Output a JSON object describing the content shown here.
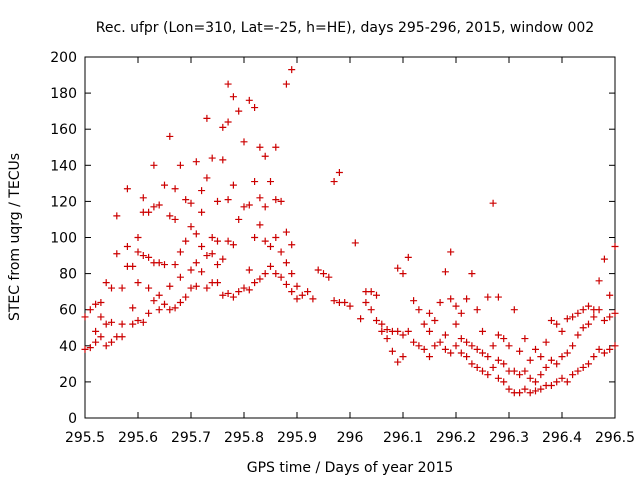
{
  "chart_data": {
    "type": "scatter",
    "title": "Rec. ufpr (Lon=310, Lat=-25, h=HE), days 295-296, 2015, window 002",
    "xlabel": "GPS time / Days of year 2015",
    "ylabel": "STEC from uqrg / TECUs",
    "xlim": [
      295.5,
      296.5
    ],
    "ylim": [
      0,
      200
    ],
    "xticks": [
      295.5,
      295.6,
      295.7,
      295.8,
      295.9,
      296.0,
      296.1,
      296.2,
      296.3,
      296.4,
      296.5
    ],
    "xtick_labels": [
      "295.5",
      "295.6",
      "295.7",
      "295.8",
      "295.9",
      "296",
      "296.1",
      "296.2",
      "296.3",
      "296.4",
      "296.5"
    ],
    "yticks": [
      0,
      20,
      40,
      60,
      80,
      100,
      120,
      140,
      160,
      180,
      200
    ],
    "ytick_labels": [
      "0",
      "20",
      "40",
      "60",
      "80",
      "100",
      "120",
      "140",
      "160",
      "180",
      "200"
    ],
    "grid": false,
    "legend": "none",
    "marker": "+",
    "color": "#cc0000",
    "points": [
      [
        295.5,
        38
      ],
      [
        295.51,
        39
      ],
      [
        295.5,
        56
      ],
      [
        295.51,
        60
      ],
      [
        295.52,
        42
      ],
      [
        295.52,
        48
      ],
      [
        295.52,
        63
      ],
      [
        295.53,
        45
      ],
      [
        295.53,
        56
      ],
      [
        295.53,
        64
      ],
      [
        295.54,
        40
      ],
      [
        295.54,
        52
      ],
      [
        295.54,
        75
      ],
      [
        295.55,
        42
      ],
      [
        295.55,
        53
      ],
      [
        295.55,
        72
      ],
      [
        295.56,
        45
      ],
      [
        295.56,
        91
      ],
      [
        295.56,
        112
      ],
      [
        295.57,
        45
      ],
      [
        295.57,
        52
      ],
      [
        295.57,
        72
      ],
      [
        295.58,
        84
      ],
      [
        295.58,
        95
      ],
      [
        295.58,
        127
      ],
      [
        295.59,
        52
      ],
      [
        295.59,
        61
      ],
      [
        295.59,
        84
      ],
      [
        295.6,
        54
      ],
      [
        295.6,
        75
      ],
      [
        295.6,
        92
      ],
      [
        295.6,
        100
      ],
      [
        295.61,
        53
      ],
      [
        295.61,
        90
      ],
      [
        295.61,
        114
      ],
      [
        295.61,
        122
      ],
      [
        295.62,
        58
      ],
      [
        295.62,
        72
      ],
      [
        295.62,
        89
      ],
      [
        295.62,
        114
      ],
      [
        295.63,
        65
      ],
      [
        295.63,
        86
      ],
      [
        295.63,
        117
      ],
      [
        295.63,
        140
      ],
      [
        295.64,
        60
      ],
      [
        295.64,
        68
      ],
      [
        295.64,
        86
      ],
      [
        295.64,
        118
      ],
      [
        295.65,
        63
      ],
      [
        295.65,
        85
      ],
      [
        295.65,
        129
      ],
      [
        295.66,
        60
      ],
      [
        295.66,
        73
      ],
      [
        295.66,
        112
      ],
      [
        295.66,
        156
      ],
      [
        295.67,
        61
      ],
      [
        295.67,
        85
      ],
      [
        295.67,
        110
      ],
      [
        295.67,
        127
      ],
      [
        295.68,
        64
      ],
      [
        295.68,
        78
      ],
      [
        295.68,
        92
      ],
      [
        295.68,
        140
      ],
      [
        295.69,
        67
      ],
      [
        295.69,
        98
      ],
      [
        295.69,
        121
      ],
      [
        295.7,
        72
      ],
      [
        295.7,
        82
      ],
      [
        295.7,
        106
      ],
      [
        295.7,
        119
      ],
      [
        295.71,
        73
      ],
      [
        295.71,
        86
      ],
      [
        295.71,
        102
      ],
      [
        295.71,
        142
      ],
      [
        295.72,
        81
      ],
      [
        295.72,
        95
      ],
      [
        295.72,
        114
      ],
      [
        295.72,
        126
      ],
      [
        295.73,
        72
      ],
      [
        295.73,
        90
      ],
      [
        295.73,
        133
      ],
      [
        295.73,
        166
      ],
      [
        295.74,
        75
      ],
      [
        295.74,
        91
      ],
      [
        295.74,
        100
      ],
      [
        295.74,
        144
      ],
      [
        295.75,
        75
      ],
      [
        295.75,
        85
      ],
      [
        295.75,
        98
      ],
      [
        295.75,
        120
      ],
      [
        295.76,
        68
      ],
      [
        295.76,
        88
      ],
      [
        295.76,
        143
      ],
      [
        295.76,
        161
      ],
      [
        295.77,
        69
      ],
      [
        295.77,
        98
      ],
      [
        295.77,
        121
      ],
      [
        295.77,
        164
      ],
      [
        295.77,
        185
      ],
      [
        295.78,
        67
      ],
      [
        295.78,
        96
      ],
      [
        295.78,
        129
      ],
      [
        295.78,
        178
      ],
      [
        295.79,
        70
      ],
      [
        295.79,
        110
      ],
      [
        295.79,
        170
      ],
      [
        295.8,
        72
      ],
      [
        295.8,
        117
      ],
      [
        295.8,
        153
      ],
      [
        295.81,
        71
      ],
      [
        295.81,
        82
      ],
      [
        295.81,
        118
      ],
      [
        295.81,
        176
      ],
      [
        295.82,
        75
      ],
      [
        295.82,
        100
      ],
      [
        295.82,
        131
      ],
      [
        295.82,
        172
      ],
      [
        295.83,
        77
      ],
      [
        295.83,
        107
      ],
      [
        295.83,
        122
      ],
      [
        295.83,
        150
      ],
      [
        295.84,
        80
      ],
      [
        295.84,
        98
      ],
      [
        295.84,
        117
      ],
      [
        295.84,
        145
      ],
      [
        295.85,
        84
      ],
      [
        295.85,
        95
      ],
      [
        295.85,
        131
      ],
      [
        295.86,
        80
      ],
      [
        295.86,
        100
      ],
      [
        295.86,
        121
      ],
      [
        295.86,
        150
      ],
      [
        295.87,
        78
      ],
      [
        295.87,
        92
      ],
      [
        295.87,
        120
      ],
      [
        295.88,
        74
      ],
      [
        295.88,
        86
      ],
      [
        295.88,
        103
      ],
      [
        295.88,
        185
      ],
      [
        295.89,
        70
      ],
      [
        295.89,
        80
      ],
      [
        295.89,
        96
      ],
      [
        295.89,
        193
      ],
      [
        295.9,
        66
      ],
      [
        295.9,
        73
      ],
      [
        295.91,
        68
      ],
      [
        295.92,
        70
      ],
      [
        295.93,
        66
      ],
      [
        295.94,
        82
      ],
      [
        295.95,
        80
      ],
      [
        295.96,
        78
      ],
      [
        295.97,
        65
      ],
      [
        295.97,
        131
      ],
      [
        295.98,
        64
      ],
      [
        295.98,
        136
      ],
      [
        295.99,
        64
      ],
      [
        296.0,
        62
      ],
      [
        296.01,
        97
      ],
      [
        296.02,
        55
      ],
      [
        296.03,
        64
      ],
      [
        296.03,
        70
      ],
      [
        296.04,
        60
      ],
      [
        296.04,
        70
      ],
      [
        296.05,
        54
      ],
      [
        296.05,
        68
      ],
      [
        296.06,
        48
      ],
      [
        296.06,
        52
      ],
      [
        296.07,
        44
      ],
      [
        296.07,
        49
      ],
      [
        296.08,
        37
      ],
      [
        296.08,
        48
      ],
      [
        296.09,
        31
      ],
      [
        296.09,
        48
      ],
      [
        296.09,
        83
      ],
      [
        296.1,
        34
      ],
      [
        296.1,
        46
      ],
      [
        296.1,
        80
      ],
      [
        296.11,
        48
      ],
      [
        296.11,
        89
      ],
      [
        296.12,
        42
      ],
      [
        296.12,
        65
      ],
      [
        296.13,
        40
      ],
      [
        296.13,
        60
      ],
      [
        296.14,
        38
      ],
      [
        296.14,
        52
      ],
      [
        296.15,
        34
      ],
      [
        296.15,
        48
      ],
      [
        296.15,
        58
      ],
      [
        296.16,
        40
      ],
      [
        296.16,
        54
      ],
      [
        296.17,
        42
      ],
      [
        296.17,
        64
      ],
      [
        296.18,
        38
      ],
      [
        296.18,
        46
      ],
      [
        296.18,
        81
      ],
      [
        296.19,
        36
      ],
      [
        296.19,
        66
      ],
      [
        296.19,
        92
      ],
      [
        296.2,
        40
      ],
      [
        296.2,
        52
      ],
      [
        296.2,
        62
      ],
      [
        296.21,
        36
      ],
      [
        296.21,
        44
      ],
      [
        296.21,
        58
      ],
      [
        296.22,
        34
      ],
      [
        296.22,
        42
      ],
      [
        296.22,
        66
      ],
      [
        296.23,
        30
      ],
      [
        296.23,
        40
      ],
      [
        296.23,
        80
      ],
      [
        296.24,
        28
      ],
      [
        296.24,
        38
      ],
      [
        296.24,
        60
      ],
      [
        296.25,
        26
      ],
      [
        296.25,
        36
      ],
      [
        296.25,
        48
      ],
      [
        296.26,
        24
      ],
      [
        296.26,
        34
      ],
      [
        296.26,
        67
      ],
      [
        296.27,
        28
      ],
      [
        296.27,
        40
      ],
      [
        296.27,
        119
      ],
      [
        296.28,
        22
      ],
      [
        296.28,
        32
      ],
      [
        296.28,
        46
      ],
      [
        296.28,
        67
      ],
      [
        296.29,
        20
      ],
      [
        296.29,
        30
      ],
      [
        296.29,
        44
      ],
      [
        296.3,
        16
      ],
      [
        296.3,
        26
      ],
      [
        296.3,
        40
      ],
      [
        296.31,
        14
      ],
      [
        296.31,
        26
      ],
      [
        296.31,
        60
      ],
      [
        296.32,
        14
      ],
      [
        296.32,
        24
      ],
      [
        296.32,
        37
      ],
      [
        296.33,
        16
      ],
      [
        296.33,
        26
      ],
      [
        296.33,
        44
      ],
      [
        296.34,
        14
      ],
      [
        296.34,
        22
      ],
      [
        296.34,
        32
      ],
      [
        296.35,
        15
      ],
      [
        296.35,
        20
      ],
      [
        296.35,
        38
      ],
      [
        296.36,
        16
      ],
      [
        296.36,
        24
      ],
      [
        296.36,
        34
      ],
      [
        296.37,
        18
      ],
      [
        296.37,
        28
      ],
      [
        296.37,
        42
      ],
      [
        296.38,
        18
      ],
      [
        296.38,
        32
      ],
      [
        296.38,
        54
      ],
      [
        296.39,
        20
      ],
      [
        296.39,
        30
      ],
      [
        296.39,
        52
      ],
      [
        296.4,
        22
      ],
      [
        296.4,
        34
      ],
      [
        296.4,
        48
      ],
      [
        296.41,
        20
      ],
      [
        296.41,
        36
      ],
      [
        296.41,
        55
      ],
      [
        296.42,
        24
      ],
      [
        296.42,
        40
      ],
      [
        296.42,
        56
      ],
      [
        296.43,
        26
      ],
      [
        296.43,
        46
      ],
      [
        296.43,
        58
      ],
      [
        296.44,
        28
      ],
      [
        296.44,
        50
      ],
      [
        296.44,
        60
      ],
      [
        296.45,
        30
      ],
      [
        296.45,
        52
      ],
      [
        296.45,
        62
      ],
      [
        296.46,
        34
      ],
      [
        296.46,
        56
      ],
      [
        296.46,
        60
      ],
      [
        296.47,
        38
      ],
      [
        296.47,
        60
      ],
      [
        296.47,
        76
      ],
      [
        296.48,
        36
      ],
      [
        296.48,
        54
      ],
      [
        296.48,
        88
      ],
      [
        296.49,
        38
      ],
      [
        296.49,
        56
      ],
      [
        296.49,
        68
      ],
      [
        296.5,
        40
      ],
      [
        296.5,
        58
      ],
      [
        296.5,
        95
      ]
    ]
  }
}
